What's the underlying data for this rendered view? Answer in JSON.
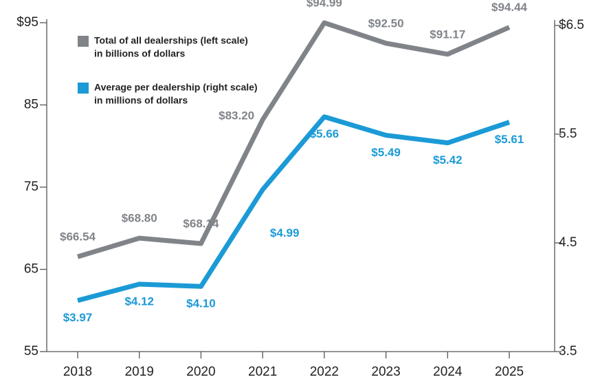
{
  "chart_data": {
    "type": "line",
    "categories": [
      "2018",
      "2019",
      "2020",
      "2021",
      "2022",
      "2023",
      "2024",
      "2025"
    ],
    "series": [
      {
        "name": "Total of all dealerships (left scale)",
        "unit": "in billions of dollars",
        "color": "#808489",
        "axis": "y",
        "values": [
          66.54,
          68.8,
          68.14,
          83.2,
          94.99,
          92.5,
          91.17,
          94.44
        ],
        "value_labels": [
          "$66.54",
          "$68.80",
          "$68.14",
          "$83.20",
          "$94.99",
          "$92.50",
          "$91.17",
          "$94.44"
        ]
      },
      {
        "name": "Average per dealership (right scale)",
        "unit": "in millions of dollars",
        "color": "#1b9ad6",
        "axis": "y2",
        "values": [
          3.97,
          4.12,
          4.1,
          4.99,
          5.66,
          5.49,
          5.42,
          5.61
        ],
        "value_labels": [
          "$3.97",
          "$4.12",
          "$4.10",
          "$4.99",
          "$5.66",
          "$5.49",
          "$5.42",
          "$5.61"
        ]
      }
    ],
    "ylim": [
      55,
      95
    ],
    "yticks": [
      55,
      65,
      75,
      85,
      {
        "value": 95,
        "label": "$95"
      }
    ],
    "y2lim": [
      3.5,
      6.5
    ],
    "y2ticks": [
      3.5,
      4.5,
      5.5,
      {
        "value": 6.5,
        "label": "$6.5"
      }
    ]
  }
}
